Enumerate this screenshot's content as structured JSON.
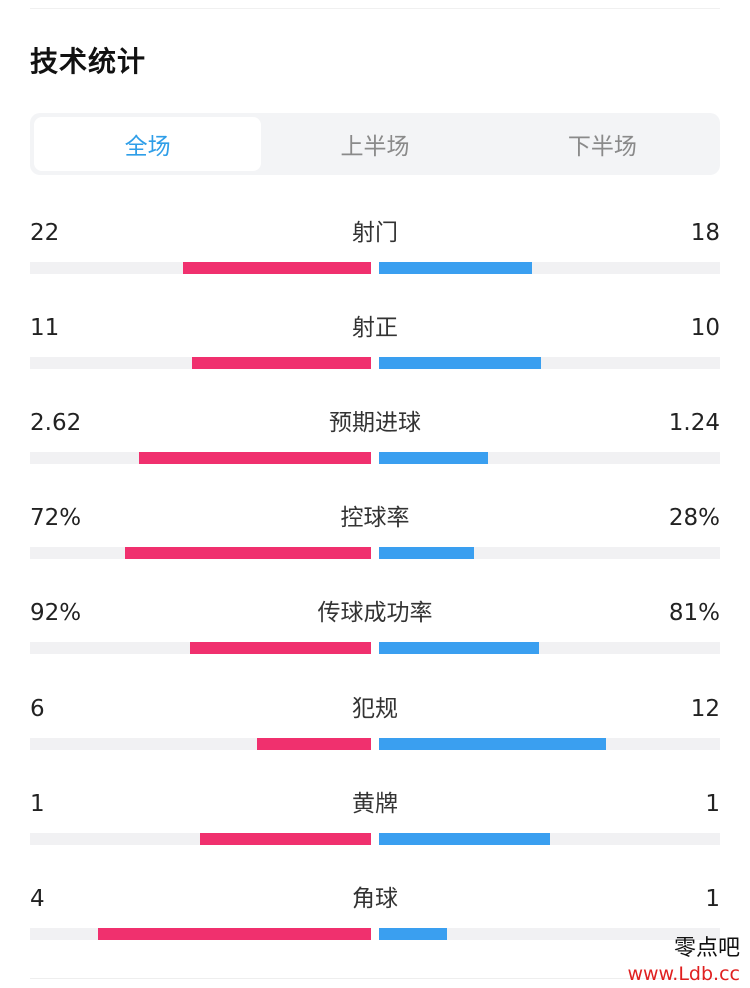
{
  "title": "技术统计",
  "tabs": [
    {
      "label": "全场",
      "active": true
    },
    {
      "label": "上半场",
      "active": false
    },
    {
      "label": "下半场",
      "active": false
    }
  ],
  "colors": {
    "home": "#f0306e",
    "away": "#3a9ff0",
    "active_tab": "#2f9ee8"
  },
  "stats": [
    {
      "label": "射门",
      "home": "22",
      "away": "18",
      "home_ratio": 0.55,
      "away_ratio": 0.45
    },
    {
      "label": "射正",
      "home": "11",
      "away": "10",
      "home_ratio": 0.524,
      "away_ratio": 0.476
    },
    {
      "label": "预期进球",
      "home": "2.62",
      "away": "1.24",
      "home_ratio": 0.679,
      "away_ratio": 0.321
    },
    {
      "label": "控球率",
      "home": "72%",
      "away": "28%",
      "home_ratio": 0.72,
      "away_ratio": 0.28
    },
    {
      "label": "传球成功率",
      "home": "92%",
      "away": "81%",
      "home_ratio": 0.532,
      "away_ratio": 0.468
    },
    {
      "label": "犯规",
      "home": "6",
      "away": "12",
      "home_ratio": 0.333,
      "away_ratio": 0.667
    },
    {
      "label": "黄牌",
      "home": "1",
      "away": "1",
      "home_ratio": 0.5,
      "away_ratio": 0.5
    },
    {
      "label": "角球",
      "home": "4",
      "away": "1",
      "home_ratio": 0.8,
      "away_ratio": 0.2
    }
  ],
  "watermark": {
    "text": "零点吧",
    "url": "www.Ldb.cc"
  }
}
